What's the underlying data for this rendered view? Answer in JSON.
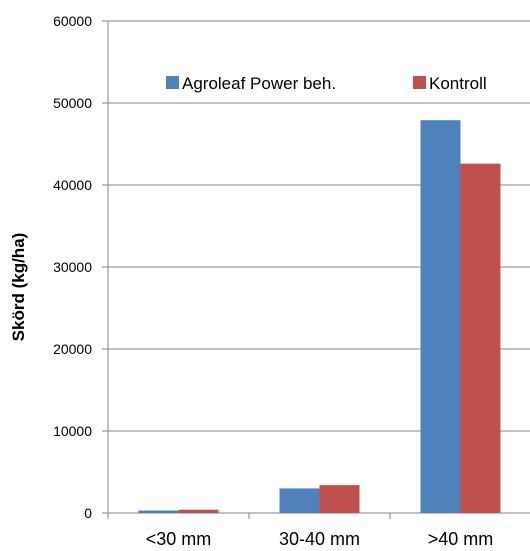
{
  "chart_data": {
    "type": "bar",
    "categories": [
      "<30 mm",
      "30-40 mm",
      ">40 mm"
    ],
    "series": [
      {
        "name": "Agroleaf Power beh.",
        "color": "#4F81BD",
        "values": [
          300,
          3000,
          47900
        ]
      },
      {
        "name": "Kontroll",
        "color": "#C0504D",
        "values": [
          400,
          3400,
          42600
        ]
      }
    ],
    "ylabel": "Skörd (kg/ha)",
    "xlabel": "",
    "ylim": [
      0,
      60000
    ],
    "yticks": [
      "0",
      "10000",
      "20000",
      "30000",
      "40000",
      "50000",
      "60000"
    ],
    "grid": true,
    "legend_position": "top-right"
  }
}
